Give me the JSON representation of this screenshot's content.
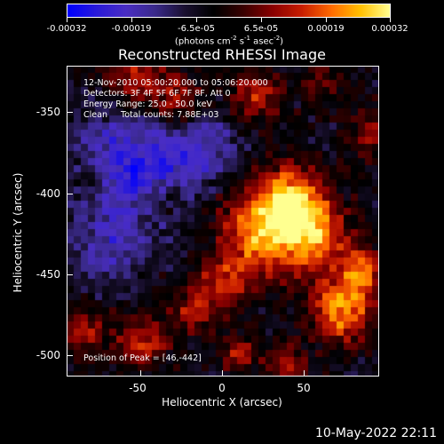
{
  "colorbar": {
    "tick_labels": [
      "-0.00032",
      "-0.00019",
      "-6.5e-05",
      "6.5e-05",
      "0.00019",
      "0.00032"
    ],
    "unit_text": "(photons cm",
    "unit_exp1": "-2",
    "unit_mid": " s",
    "unit_exp2": "-1",
    "unit_end": " asec",
    "unit_exp3": "-2",
    "unit_close": ")"
  },
  "title": "Reconstructed RHESSI Image",
  "info": {
    "time_range": "12-Nov-2010 05:00:20.000 to 05:06:20.000",
    "detectors": "Detectors: 3F 4F 5F 6F 7F 8F, Att 0",
    "energy": "Energy Range: 25.0 - 50.0 keV",
    "clean": "Clean     Total counts: 7.88E+03",
    "peak": "Position of Peak = [46,-442]"
  },
  "axes": {
    "y_title": "Heliocentric Y (arcsec)",
    "x_title": "Heliocentric X (arcsec)",
    "y_ticks": [
      "-350",
      "-400",
      "-450",
      "-500"
    ],
    "x_ticks": [
      "-50",
      "0",
      "50"
    ]
  },
  "footer": {
    "date": "10-May-2022 22:11"
  },
  "colors": {
    "colormap": [
      "#0000ff",
      "#2b1bd9",
      "#4a2ec4",
      "#3a2a8a",
      "#1a1030",
      "#000000",
      "#3a0000",
      "#8a0000",
      "#c81e00",
      "#ff6a00",
      "#ffc000",
      "#ffff90"
    ]
  }
}
